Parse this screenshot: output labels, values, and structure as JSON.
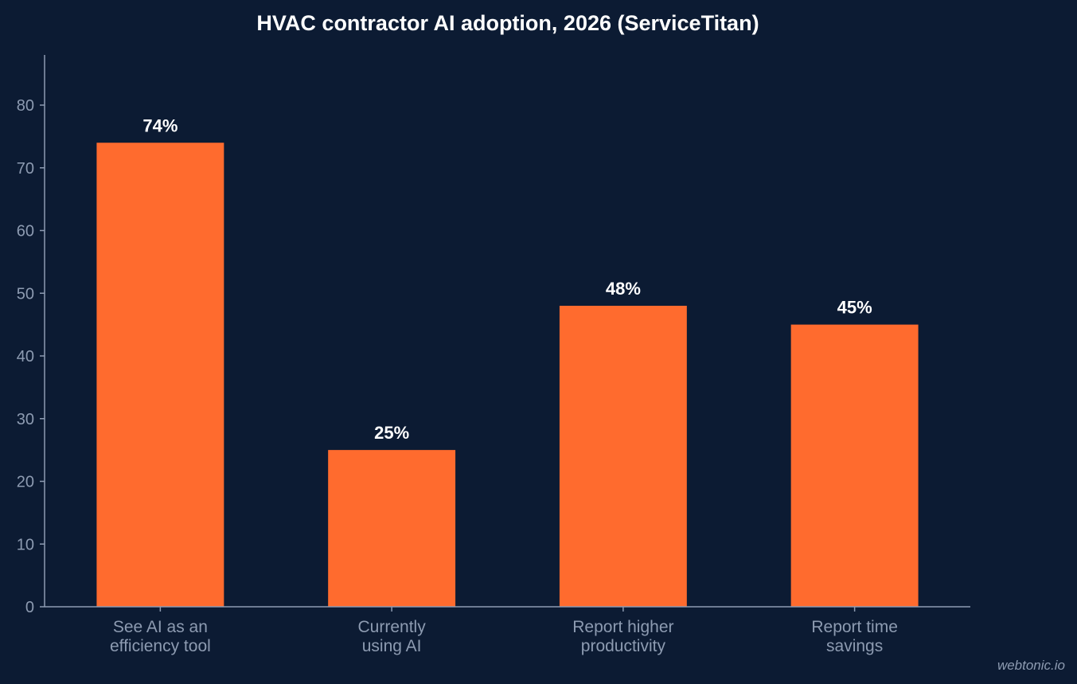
{
  "chart_data": {
    "type": "bar",
    "title": "HVAC contractor AI adoption, 2026 (ServiceTitan)",
    "categories": [
      [
        "See AI as an",
        "efficiency tool"
      ],
      [
        "Currently",
        "using AI"
      ],
      [
        "Report higher",
        "productivity"
      ],
      [
        "Report time",
        "savings"
      ]
    ],
    "values": [
      74,
      25,
      48,
      45
    ],
    "data_labels": [
      "74%",
      "25%",
      "48%",
      "45%"
    ],
    "xlabel": "",
    "ylabel": "",
    "ylim": [
      0,
      88
    ],
    "yticks": [
      0,
      10,
      20,
      30,
      40,
      50,
      60,
      70,
      80
    ],
    "grid": false,
    "legend": "none",
    "colors": {
      "background": "#0c1b33",
      "bar": "#ff6b2e",
      "axis": "#8d9bb1",
      "tick_text": "#8d9bb1",
      "title_text": "#ffffff",
      "data_label_text": "#ffffff"
    }
  },
  "watermark": "webtonic.io"
}
